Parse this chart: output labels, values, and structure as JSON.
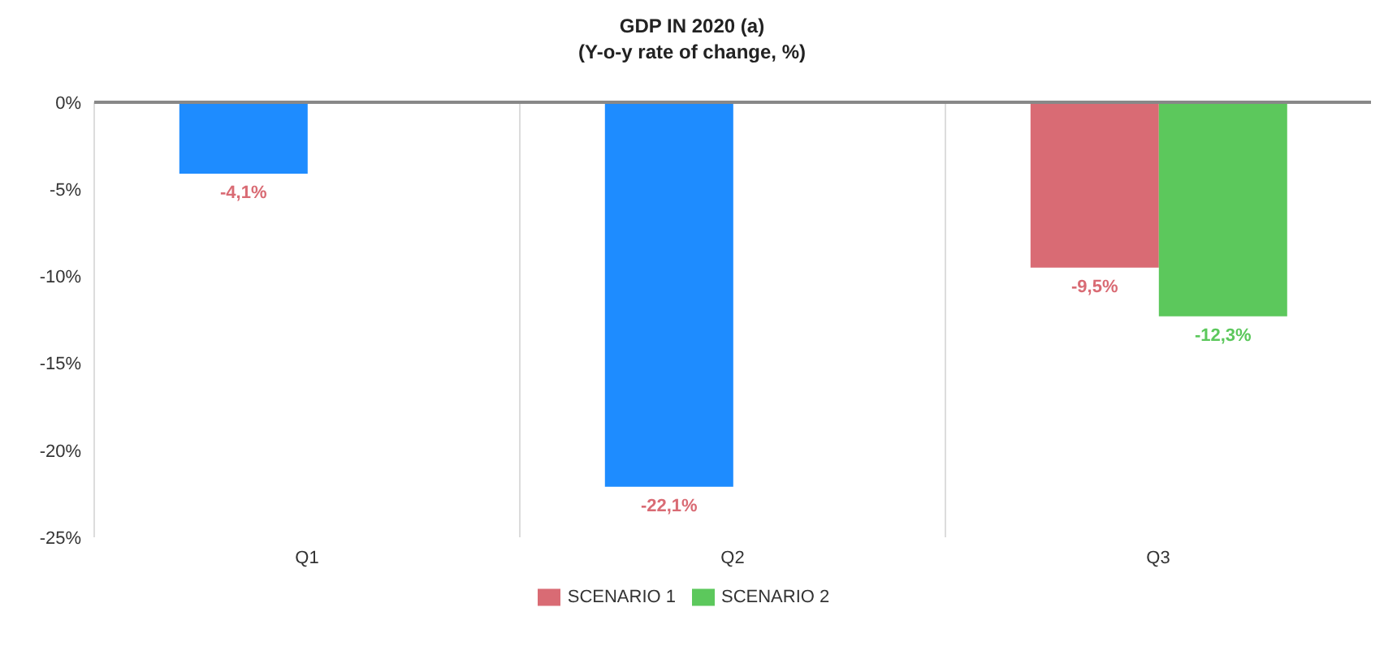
{
  "chart_data": {
    "type": "bar",
    "title": "GDP IN 2020 (a)",
    "subtitle": "(Y-o-y rate of change, %)",
    "categories": [
      "Q1",
      "Q2",
      "Q3"
    ],
    "series": [
      {
        "name": "SCENARIO 1",
        "color": "#d96b74",
        "colors": [
          "#1e8cff",
          "#1e8cff",
          "#d96b74"
        ],
        "values": [
          -4.1,
          -22.1,
          -9.5
        ],
        "value_labels": [
          "-4,1%",
          "-22,1%",
          "-9,5%"
        ]
      },
      {
        "name": "SCENARIO 2",
        "color": "#5cc85c",
        "values": [
          null,
          null,
          -12.3
        ],
        "value_labels": [
          null,
          null,
          "-12,3%"
        ]
      }
    ],
    "ylim": [
      -25,
      0
    ],
    "yticks": [
      {
        "value": 0,
        "label": "0%"
      },
      {
        "value": -5,
        "label": "-5%"
      },
      {
        "value": -10,
        "label": "-10%"
      },
      {
        "value": -15,
        "label": "-15%"
      },
      {
        "value": -20,
        "label": "-20%"
      },
      {
        "value": -25,
        "label": "-25%"
      }
    ],
    "grid": "x",
    "legend": "bottom"
  }
}
